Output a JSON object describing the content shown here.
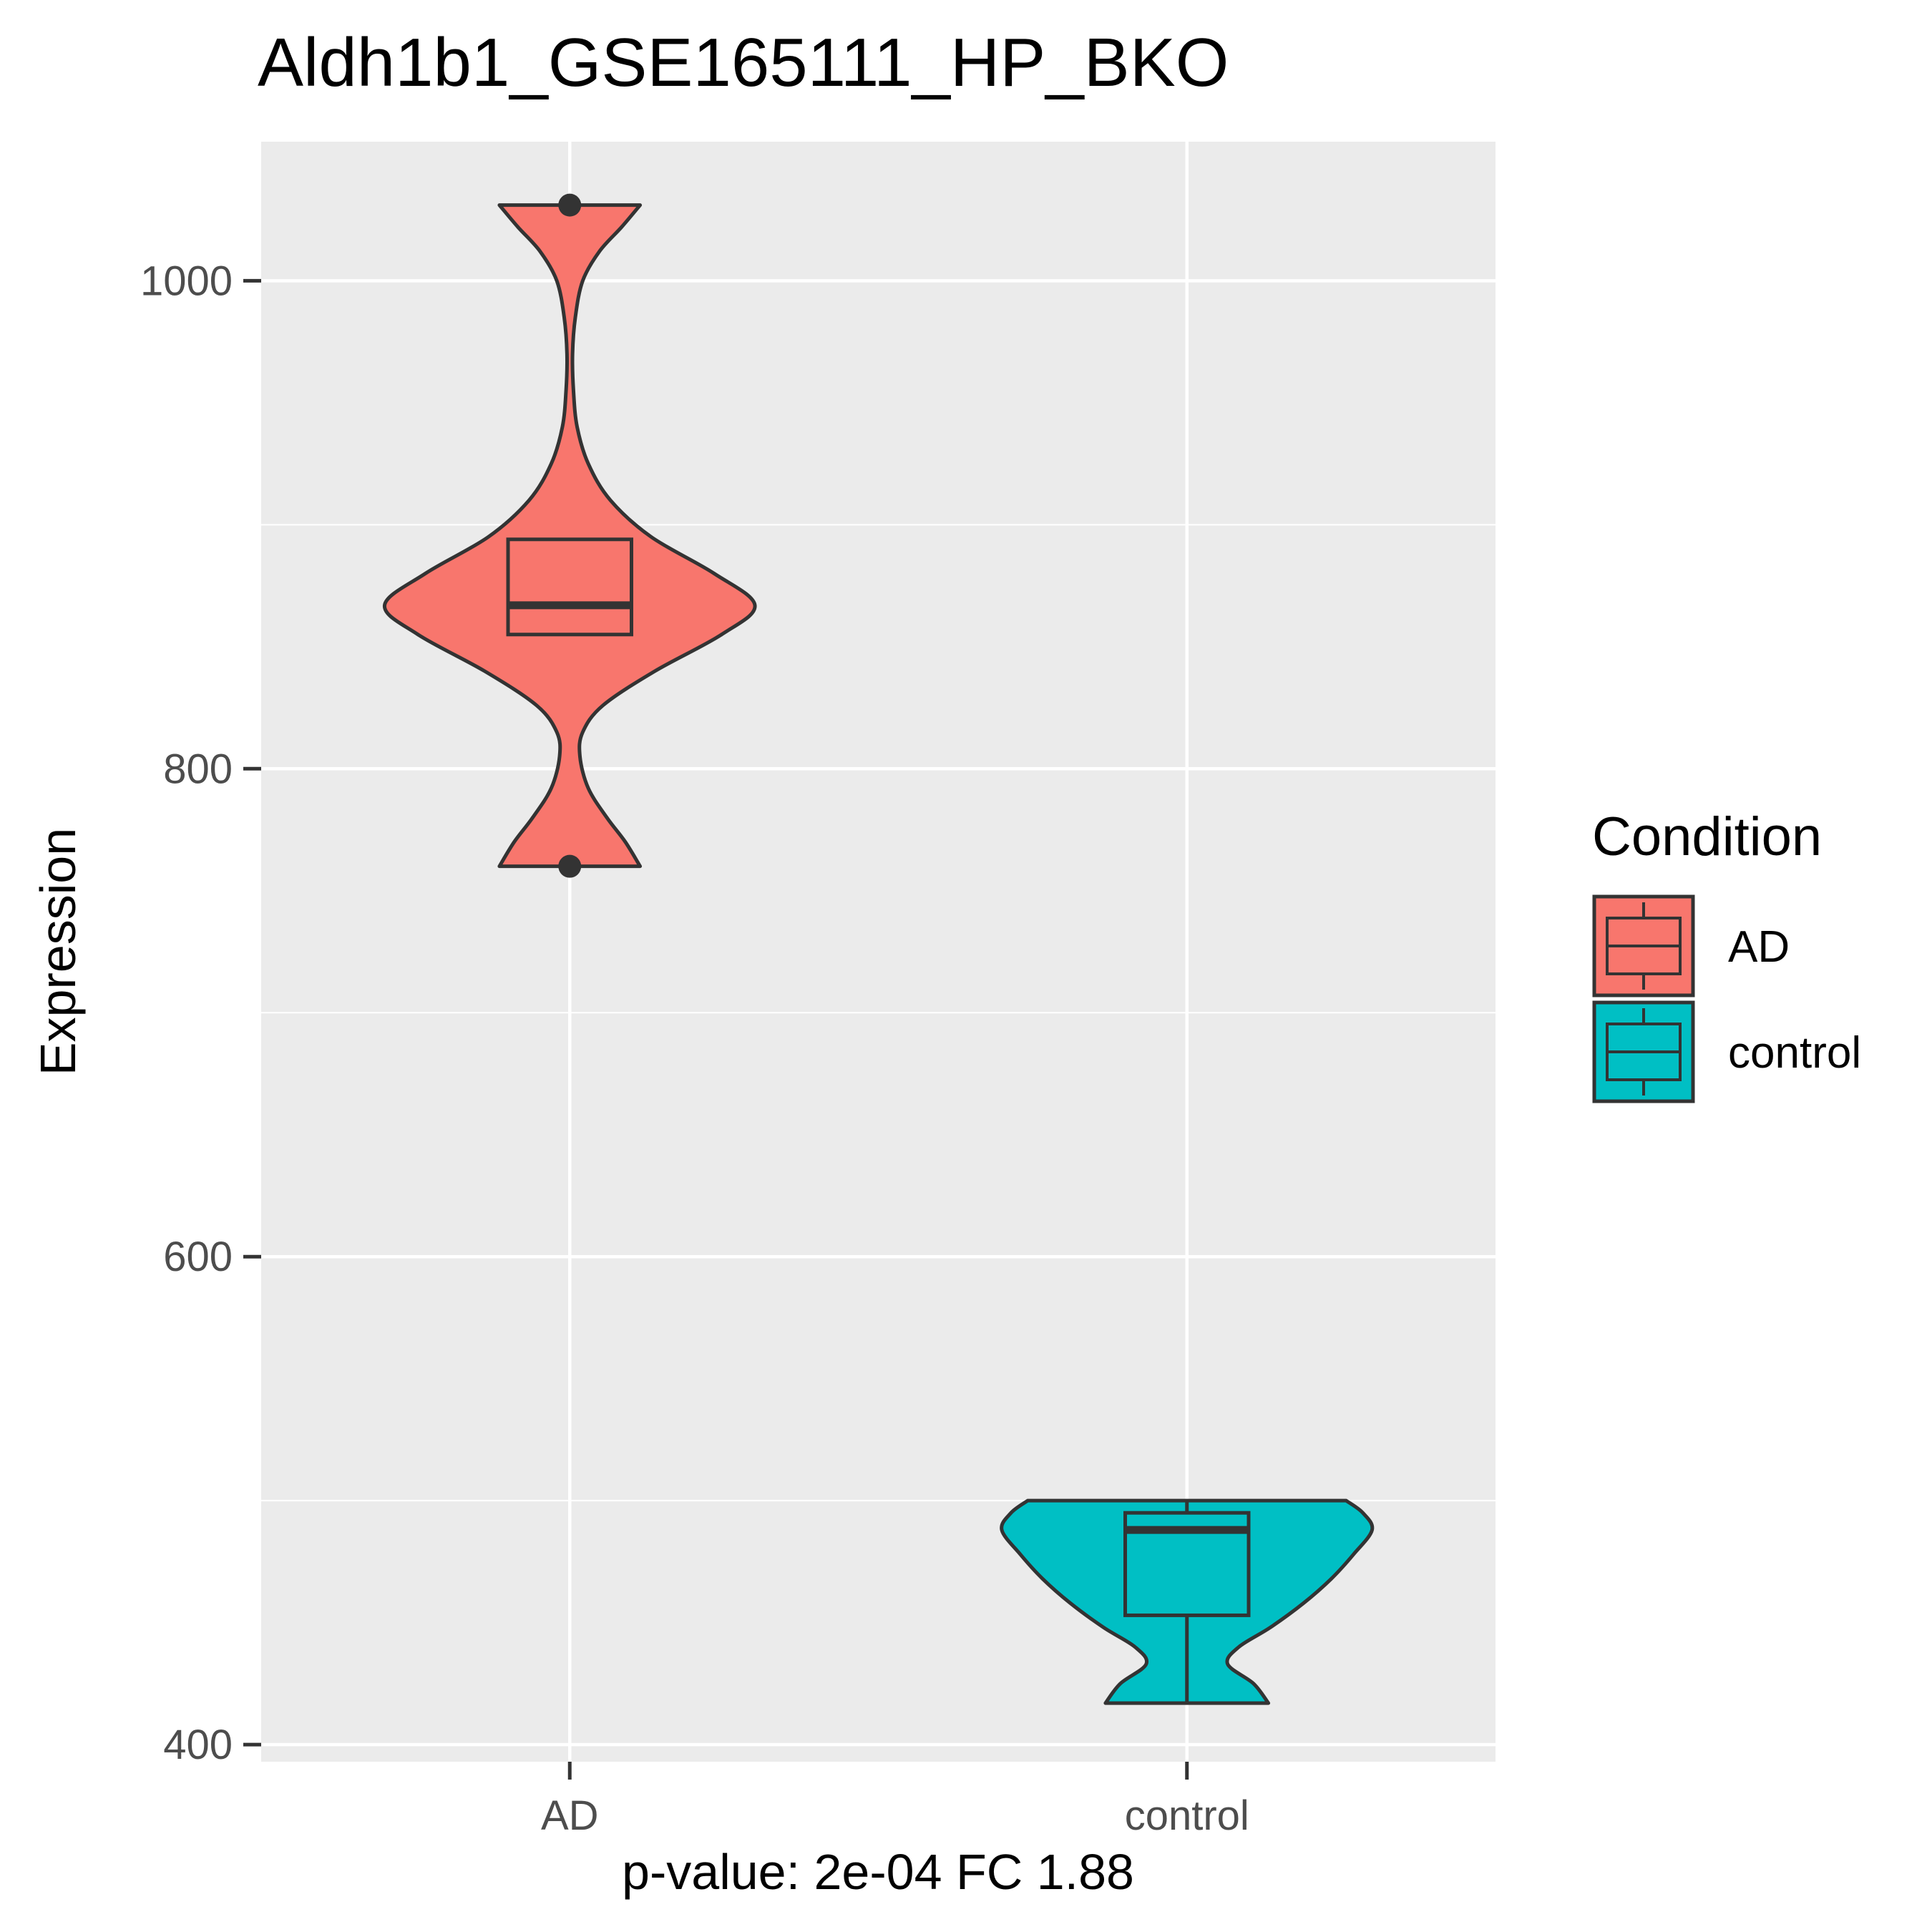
{
  "chart_data": {
    "type": "violin",
    "title": "Aldh1b1_GSE165111_HP_BKO",
    "xlabel": "p-value: 2e-04 FC 1.88",
    "ylabel": "Expression",
    "categories": [
      "AD",
      "control"
    ],
    "ylim": [
      393,
      1057
    ],
    "yticks": [
      400,
      600,
      800,
      1000
    ],
    "grid": true,
    "legend": {
      "title": "Condition",
      "position": "right",
      "entries": [
        "AD",
        "control"
      ]
    },
    "colors": {
      "AD": "#F8766D",
      "control": "#00BFC4",
      "panel": "#EBEBEB",
      "outline": "#333333",
      "grid": "#FFFFFF"
    },
    "series": [
      {
        "category": "AD",
        "box": {
          "lower_whisker": 855,
          "q1": 855,
          "median": 867,
          "q3": 894,
          "upper_whisker": 894
        },
        "outliers": [
          760,
          1031
        ],
        "violin_range": [
          760,
          1031
        ],
        "density": [
          [
            760,
            0.38
          ],
          [
            770,
            0.3
          ],
          [
            780,
            0.2
          ],
          [
            792,
            0.1
          ],
          [
            805,
            0.055
          ],
          [
            815,
            0.07
          ],
          [
            826,
            0.18
          ],
          [
            840,
            0.46
          ],
          [
            855,
            0.82
          ],
          [
            867,
            1.0
          ],
          [
            880,
            0.78
          ],
          [
            895,
            0.44
          ],
          [
            910,
            0.22
          ],
          [
            925,
            0.1
          ],
          [
            940,
            0.04
          ],
          [
            955,
            0.02
          ],
          [
            970,
            0.015
          ],
          [
            985,
            0.03
          ],
          [
            1000,
            0.07
          ],
          [
            1012,
            0.16
          ],
          [
            1022,
            0.28
          ],
          [
            1031,
            0.38
          ]
        ]
      },
      {
        "category": "control",
        "box": {
          "lower_whisker": 417,
          "q1": 453,
          "median": 488,
          "q3": 495,
          "upper_whisker": 500
        },
        "outliers": [],
        "violin_range": [
          417,
          500
        ],
        "density": [
          [
            417,
            0.44
          ],
          [
            425,
            0.36
          ],
          [
            433,
            0.22
          ],
          [
            440,
            0.28
          ],
          [
            448,
            0.45
          ],
          [
            458,
            0.63
          ],
          [
            468,
            0.78
          ],
          [
            478,
            0.9
          ],
          [
            488,
            1.0
          ],
          [
            495,
            0.95
          ],
          [
            500,
            0.86
          ]
        ]
      }
    ]
  }
}
